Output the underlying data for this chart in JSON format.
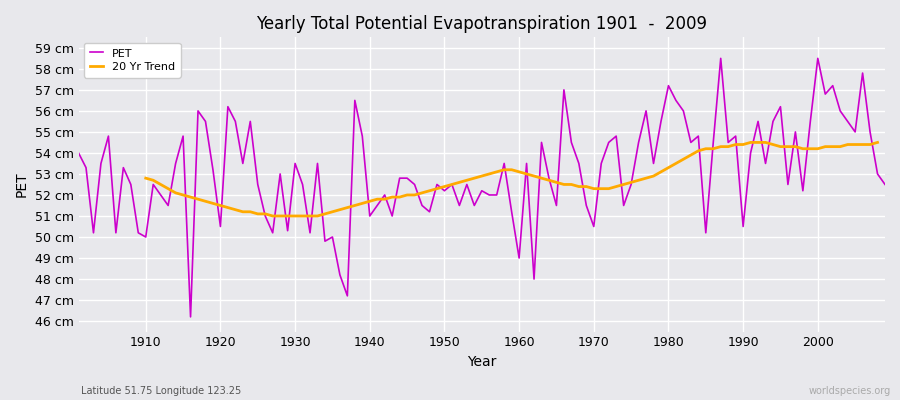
{
  "title": "Yearly Total Potential Evapotranspiration 1901  -  2009",
  "xlabel": "Year",
  "ylabel": "PET",
  "subtitle": "Latitude 51.75 Longitude 123.25",
  "watermark": "worldspecies.org",
  "pet_color": "#cc00cc",
  "trend_color": "#ffaa00",
  "bg_color": "#e8e8ec",
  "grid_color": "#d8d8e0",
  "ylim": [
    45.5,
    59.5
  ],
  "yticks": [
    46,
    47,
    48,
    49,
    50,
    51,
    52,
    53,
    54,
    55,
    56,
    57,
    58,
    59
  ],
  "xlim": [
    1901,
    2009
  ],
  "years": [
    1901,
    1902,
    1903,
    1904,
    1905,
    1906,
    1907,
    1908,
    1909,
    1910,
    1911,
    1912,
    1913,
    1914,
    1915,
    1916,
    1917,
    1918,
    1919,
    1920,
    1921,
    1922,
    1923,
    1924,
    1925,
    1926,
    1927,
    1928,
    1929,
    1930,
    1931,
    1932,
    1933,
    1934,
    1935,
    1936,
    1937,
    1938,
    1939,
    1940,
    1941,
    1942,
    1943,
    1944,
    1945,
    1946,
    1947,
    1948,
    1949,
    1950,
    1951,
    1952,
    1953,
    1954,
    1955,
    1956,
    1957,
    1958,
    1959,
    1960,
    1961,
    1962,
    1963,
    1964,
    1965,
    1966,
    1967,
    1968,
    1969,
    1970,
    1971,
    1972,
    1973,
    1974,
    1975,
    1976,
    1977,
    1978,
    1979,
    1980,
    1981,
    1982,
    1983,
    1984,
    1985,
    1986,
    1987,
    1988,
    1989,
    1990,
    1991,
    1992,
    1993,
    1994,
    1995,
    1996,
    1997,
    1998,
    1999,
    2000,
    2001,
    2002,
    2003,
    2004,
    2005,
    2006,
    2007,
    2008,
    2009
  ],
  "pet": [
    54.0,
    53.3,
    50.2,
    53.5,
    54.8,
    50.2,
    53.3,
    52.5,
    50.2,
    50.0,
    52.5,
    52.0,
    51.5,
    53.5,
    54.8,
    46.2,
    56.0,
    55.5,
    53.2,
    50.5,
    56.2,
    55.5,
    53.5,
    55.5,
    52.5,
    51.0,
    50.2,
    53.0,
    50.3,
    53.5,
    52.5,
    50.2,
    53.5,
    49.8,
    50.0,
    48.2,
    47.2,
    56.5,
    54.8,
    51.0,
    51.5,
    52.0,
    51.0,
    52.8,
    52.8,
    52.5,
    51.5,
    51.2,
    52.5,
    52.2,
    52.5,
    51.5,
    52.5,
    51.5,
    52.2,
    52.0,
    52.0,
    53.5,
    51.2,
    49.0,
    53.5,
    48.0,
    54.5,
    52.8,
    51.5,
    57.0,
    54.5,
    53.5,
    51.5,
    50.5,
    53.5,
    54.5,
    54.8,
    51.5,
    52.5,
    54.5,
    56.0,
    53.5,
    55.5,
    57.2,
    56.5,
    56.0,
    54.5,
    54.8,
    50.2,
    54.5,
    58.5,
    54.5,
    54.8,
    50.5,
    54.0,
    55.5,
    53.5,
    55.5,
    56.2,
    52.5,
    55.0,
    52.2,
    55.5,
    58.5,
    56.8,
    57.2,
    56.0,
    55.5,
    55.0,
    57.8,
    55.0,
    53.0,
    52.5
  ],
  "trend_start_year": 1910,
  "trend": [
    52.8,
    52.7,
    52.5,
    52.3,
    52.1,
    52.0,
    51.9,
    51.8,
    51.7,
    51.6,
    51.5,
    51.4,
    51.3,
    51.2,
    51.2,
    51.1,
    51.1,
    51.0,
    51.0,
    51.0,
    51.0,
    51.0,
    51.0,
    51.0,
    51.1,
    51.2,
    51.3,
    51.4,
    51.5,
    51.6,
    51.7,
    51.8,
    51.8,
    51.9,
    51.9,
    52.0,
    52.0,
    52.1,
    52.2,
    52.3,
    52.4,
    52.5,
    52.6,
    52.7,
    52.8,
    52.9,
    53.0,
    53.1,
    53.2,
    53.2,
    53.1,
    53.0,
    52.9,
    52.8,
    52.7,
    52.6,
    52.5,
    52.5,
    52.4,
    52.4,
    52.3,
    52.3,
    52.3,
    52.4,
    52.5,
    52.6,
    52.7,
    52.8,
    52.9,
    53.1,
    53.3,
    53.5,
    53.7,
    53.9,
    54.1,
    54.2,
    54.2,
    54.3,
    54.3,
    54.4,
    54.4,
    54.5,
    54.5,
    54.5,
    54.4,
    54.3,
    54.3,
    54.3,
    54.2,
    54.2,
    54.2,
    54.3,
    54.3,
    54.3,
    54.4,
    54.4,
    54.4,
    54.4,
    54.5
  ]
}
